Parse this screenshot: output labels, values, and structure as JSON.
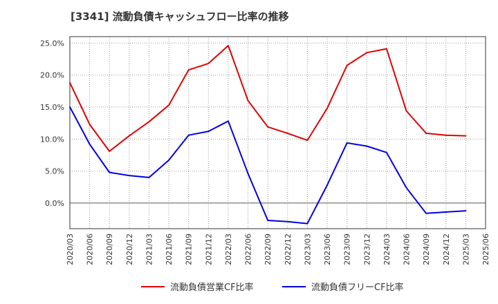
{
  "chart_data": {
    "type": "line",
    "title": "[3341]  流動負債キャッシュフロー比率の推移",
    "x": [
      "2020/03",
      "2020/06",
      "2020/09",
      "2020/12",
      "2021/03",
      "2021/06",
      "2021/09",
      "2021/12",
      "2022/03",
      "2022/06",
      "2022/09",
      "2022/12",
      "2023/03",
      "2023/06",
      "2023/09",
      "2023/12",
      "2024/03",
      "2024/06",
      "2024/09",
      "2024/12",
      "2025/03",
      "2025/06"
    ],
    "ylim": [
      -4,
      26
    ],
    "yticks": [
      0,
      5,
      10,
      15,
      20,
      25
    ],
    "ytick_labels": [
      "0.0%",
      "5.0%",
      "10.0%",
      "15.0%",
      "20.0%",
      "25.0%"
    ],
    "grid": true,
    "legend_position": "bottom",
    "series": [
      {
        "name": "流動負債営業CF比率",
        "color": "#e00000",
        "values": [
          18.8,
          12.3,
          8.1,
          10.5,
          12.7,
          15.3,
          20.8,
          21.8,
          24.6,
          16.0,
          11.9,
          10.9,
          9.8,
          14.8,
          21.5,
          23.5,
          24.1,
          14.4,
          10.9,
          10.6,
          10.5,
          null
        ]
      },
      {
        "name": "流動負債フリーCF比率",
        "color": "#0000e0",
        "values": [
          15.0,
          9.2,
          4.8,
          4.3,
          4.0,
          6.7,
          10.6,
          11.2,
          12.8,
          4.6,
          -2.7,
          -2.9,
          -3.2,
          2.8,
          9.4,
          8.9,
          7.9,
          2.4,
          -1.6,
          -1.4,
          -1.2,
          null
        ]
      }
    ]
  }
}
